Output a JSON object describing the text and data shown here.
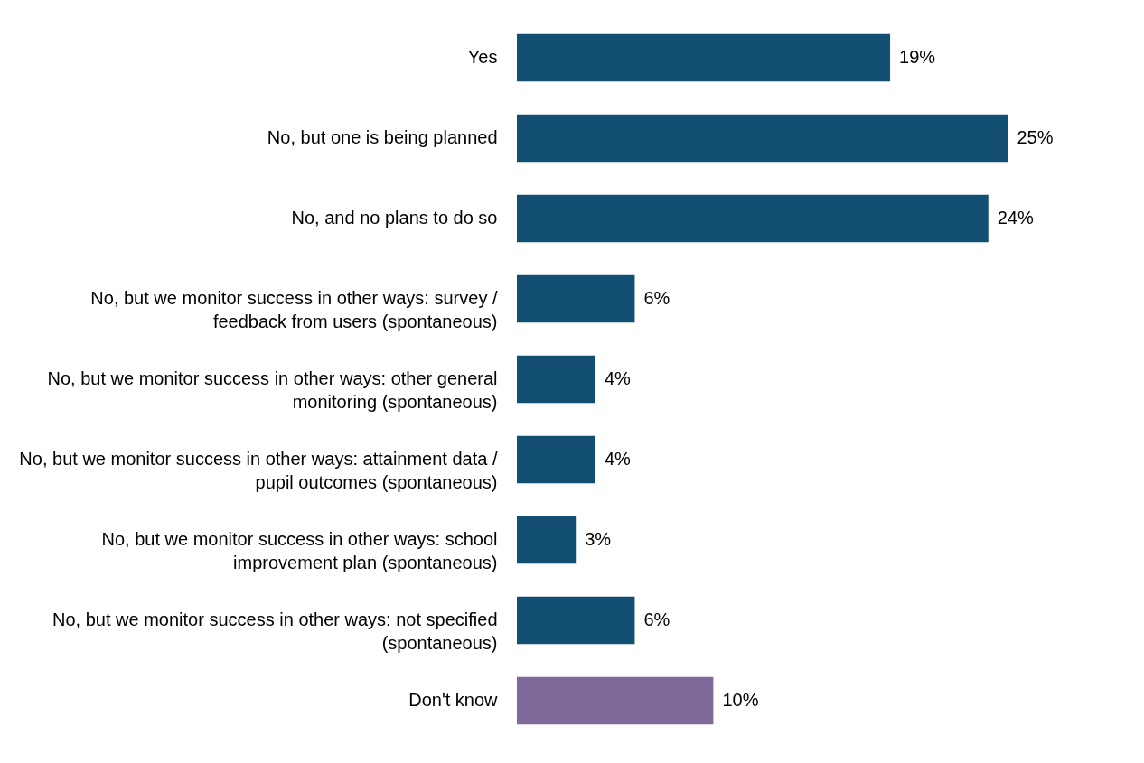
{
  "chart_data": {
    "type": "bar",
    "orientation": "horizontal",
    "categories": [
      "Yes",
      "No, but one is being planned",
      "No, and no plans to do so",
      "No, but we monitor success in other ways: survey / feedback from users (spontaneous)",
      "No, but we monitor success in other ways: other general monitoring (spontaneous)",
      "No, but we monitor success in other ways: attainment data / pupil outcomes (spontaneous)",
      "No, but we monitor success in other ways: school improvement plan (spontaneous)",
      "No, but we monitor success in other ways: not specified (spontaneous)",
      "Don't know"
    ],
    "values": [
      19,
      25,
      24,
      6,
      4,
      4,
      3,
      6,
      10
    ],
    "colors": [
      "#124f73",
      "#124f73",
      "#124f73",
      "#124f73",
      "#124f73",
      "#124f73",
      "#124f73",
      "#124f73",
      "#7f6a9a"
    ],
    "value_labels": [
      "19%",
      "25%",
      "24%",
      "6%",
      "4%",
      "4%",
      "3%",
      "6%",
      "10%"
    ]
  }
}
